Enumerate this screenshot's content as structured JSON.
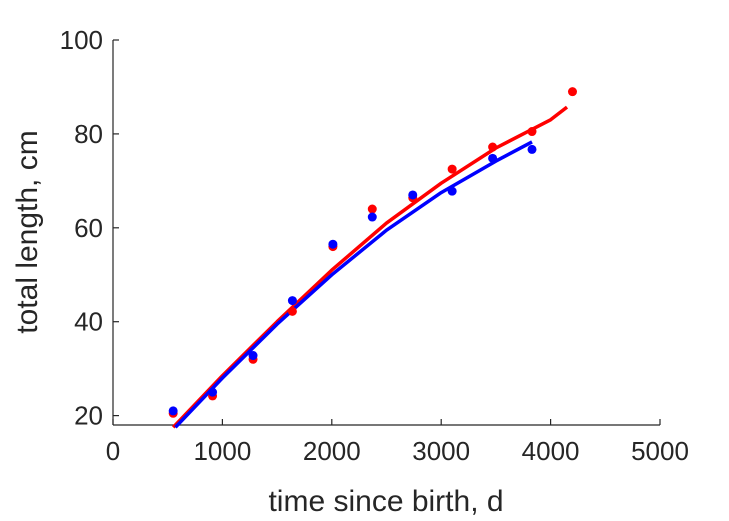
{
  "chart_data": {
    "type": "scatter",
    "xlabel": "time since birth, d",
    "ylabel": "total length, cm",
    "xlim": [
      0,
      5000
    ],
    "ylim": [
      18,
      100
    ],
    "xticks": [
      0,
      1000,
      2000,
      3000,
      4000,
      5000
    ],
    "yticks": [
      20,
      40,
      60,
      80,
      100
    ],
    "xtick_labels": [
      "0",
      "1000",
      "2000",
      "3000",
      "4000",
      "5000"
    ],
    "ytick_labels": [
      "20",
      "40",
      "60",
      "80",
      "100"
    ],
    "grid": false,
    "series": [
      {
        "color": "#ff0000",
        "points": [
          {
            "x": 550,
            "y": 20.5
          },
          {
            "x": 910,
            "y": 24.2
          },
          {
            "x": 1280,
            "y": 32.0
          },
          {
            "x": 1640,
            "y": 42.2
          },
          {
            "x": 2010,
            "y": 56.0
          },
          {
            "x": 2370,
            "y": 64.0
          },
          {
            "x": 2740,
            "y": 66.4
          },
          {
            "x": 3100,
            "y": 72.5
          },
          {
            "x": 3470,
            "y": 77.2
          },
          {
            "x": 3830,
            "y": 80.5
          },
          {
            "x": 4200,
            "y": 89.0
          }
        ],
        "fit": [
          {
            "x": 550,
            "y": 17.5
          },
          {
            "x": 1000,
            "y": 28.5
          },
          {
            "x": 1500,
            "y": 40.0
          },
          {
            "x": 2000,
            "y": 51.0
          },
          {
            "x": 2500,
            "y": 61.0
          },
          {
            "x": 3000,
            "y": 69.5
          },
          {
            "x": 3500,
            "y": 77.0
          },
          {
            "x": 4000,
            "y": 83.0
          },
          {
            "x": 4150,
            "y": 85.7
          }
        ]
      },
      {
        "color": "#0000ff",
        "points": [
          {
            "x": 550,
            "y": 21.0
          },
          {
            "x": 910,
            "y": 25.0
          },
          {
            "x": 1280,
            "y": 32.8
          },
          {
            "x": 1640,
            "y": 44.5
          },
          {
            "x": 2010,
            "y": 56.5
          },
          {
            "x": 2370,
            "y": 62.3
          },
          {
            "x": 2740,
            "y": 67.0
          },
          {
            "x": 3100,
            "y": 67.8
          },
          {
            "x": 3470,
            "y": 74.8
          },
          {
            "x": 3830,
            "y": 76.7
          }
        ],
        "fit": [
          {
            "x": 570,
            "y": 17.5
          },
          {
            "x": 1000,
            "y": 28.0
          },
          {
            "x": 1500,
            "y": 39.5
          },
          {
            "x": 2000,
            "y": 50.0
          },
          {
            "x": 2500,
            "y": 59.5
          },
          {
            "x": 3000,
            "y": 67.5
          },
          {
            "x": 3500,
            "y": 74.2
          },
          {
            "x": 3830,
            "y": 78.3
          }
        ]
      }
    ]
  }
}
